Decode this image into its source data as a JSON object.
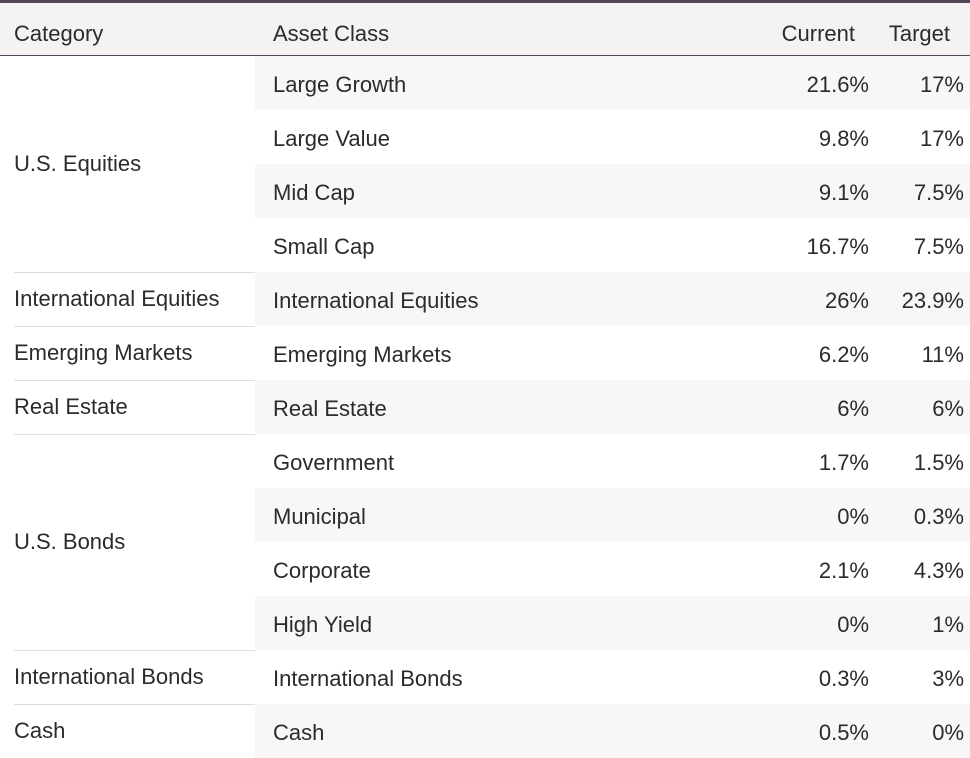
{
  "table": {
    "headers": {
      "category": "Category",
      "asset_class": "Asset Class",
      "current": "Current",
      "target": "Target"
    },
    "groups": [
      {
        "category": "U.S. Equities",
        "rows": [
          {
            "asset": "Large Growth",
            "current": "21.6%",
            "target": "17%"
          },
          {
            "asset": "Large Value",
            "current": "9.8%",
            "target": "17%"
          },
          {
            "asset": "Mid Cap",
            "current": "9.1%",
            "target": "7.5%"
          },
          {
            "asset": "Small Cap",
            "current": "16.7%",
            "target": "7.5%"
          }
        ]
      },
      {
        "category": "International Equities",
        "rows": [
          {
            "asset": "International Equities",
            "current": "26%",
            "target": "23.9%"
          }
        ]
      },
      {
        "category": "Emerging Markets",
        "rows": [
          {
            "asset": "Emerging Markets",
            "current": "6.2%",
            "target": "11%"
          }
        ]
      },
      {
        "category": "Real Estate",
        "rows": [
          {
            "asset": "Real Estate",
            "current": "6%",
            "target": "6%"
          }
        ]
      },
      {
        "category": "U.S. Bonds",
        "rows": [
          {
            "asset": "Government",
            "current": "1.7%",
            "target": "1.5%"
          },
          {
            "asset": "Municipal",
            "current": "0%",
            "target": "0.3%"
          },
          {
            "asset": "Corporate",
            "current": "2.1%",
            "target": "4.3%"
          },
          {
            "asset": "High Yield",
            "current": "0%",
            "target": "1%"
          }
        ]
      },
      {
        "category": "International Bonds",
        "rows": [
          {
            "asset": "International Bonds",
            "current": "0.3%",
            "target": "3%"
          }
        ]
      },
      {
        "category": "Cash",
        "rows": [
          {
            "asset": "Cash",
            "current": "0.5%",
            "target": "0%"
          }
        ]
      }
    ]
  }
}
